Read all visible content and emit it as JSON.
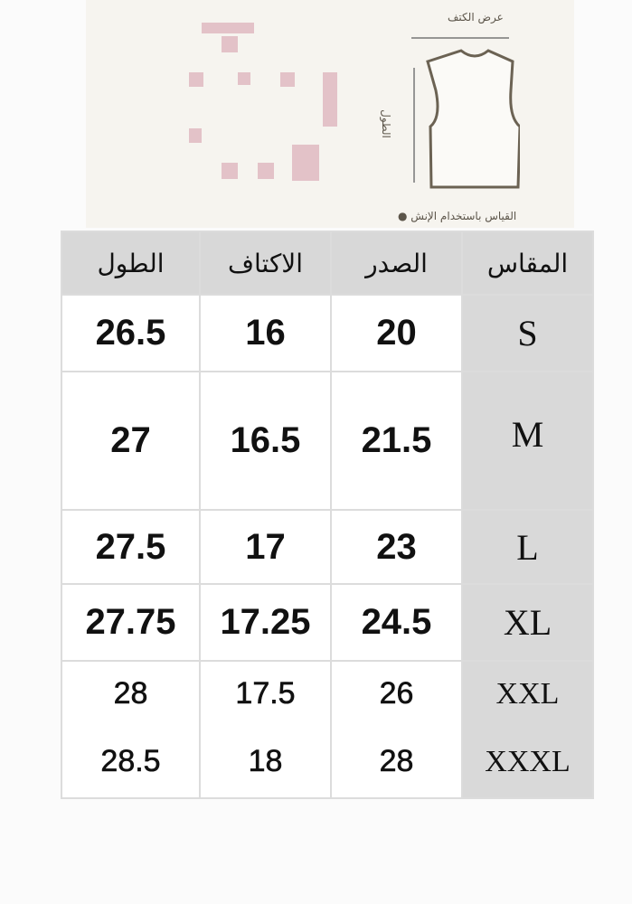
{
  "diagram": {
    "shoulder_width_label": "عرض الكتف",
    "length_label": "الطول",
    "note": "القياس باستخدام الإنش",
    "watermark_color": "#e3c2c8"
  },
  "table": {
    "headers": [
      "الطول",
      "الاكتاف",
      "الصدر",
      "المقاس"
    ],
    "rows": [
      {
        "length": "26.5",
        "shoulders": "16",
        "chest": "20",
        "size": "S"
      },
      {
        "length": "27",
        "shoulders": "16.5",
        "chest": "21.5",
        "size": "M"
      },
      {
        "length": "27.5",
        "shoulders": "17",
        "chest": "23",
        "size": "L"
      },
      {
        "length": "27.75",
        "shoulders": "17.25",
        "chest": "24.5",
        "size": "XL"
      },
      {
        "length": "28",
        "shoulders": "17.5",
        "chest": "26",
        "size": "XXL"
      },
      {
        "length": "28.5",
        "shoulders": "18",
        "chest": "28",
        "size": "XXXL"
      }
    ],
    "header_bg": "#d8d8d8",
    "size_col_bg": "#d9d9d9"
  }
}
